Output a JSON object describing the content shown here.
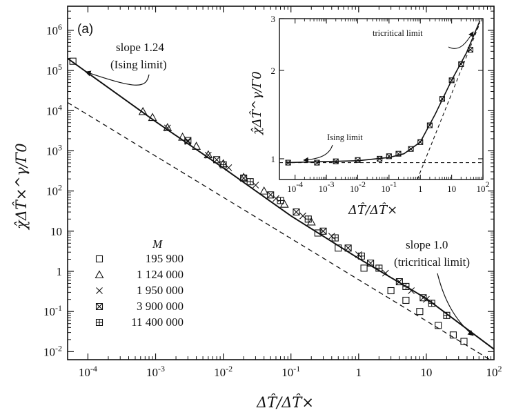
{
  "chart_data": [
    {
      "id": "main",
      "type": "scatter",
      "panel_label": "(a)",
      "xlabel": "ΔT̂/ΔT̂×",
      "ylabel": "χ̂ΔT̂×^γ/Γ0",
      "xscale": "log",
      "yscale": "log",
      "xlim_exp": [
        -4.3,
        2
      ],
      "ylim_exp": [
        -2.2,
        6.6
      ],
      "x_ticks": [
        "10-4",
        "10-3",
        "10-2",
        "10-1",
        "1",
        "10",
        "102"
      ],
      "y_ticks": [
        "10-2",
        "10-1",
        "1",
        "10",
        "102",
        "103",
        "104",
        "105",
        "106"
      ],
      "series": [
        {
          "name": "195 900",
          "marker": "square",
          "points": [
            [
              6e-05,
              170000
            ],
            [
              0.25,
              9.0
            ],
            [
              0.5,
              3.8
            ],
            [
              1.2,
              1.2
            ],
            [
              3.0,
              0.33
            ],
            [
              5.0,
              0.19
            ],
            [
              8.0,
              0.1
            ],
            [
              15.0,
              0.045
            ],
            [
              25.0,
              0.026
            ],
            [
              36.0,
              0.018
            ]
          ]
        },
        {
          "name": "1 124 000",
          "marker": "triangle",
          "points": [
            [
              0.00065,
              9500
            ],
            [
              0.0009,
              6800
            ],
            [
              0.0015,
              3800
            ],
            [
              0.0025,
              2200
            ],
            [
              0.004,
              1300
            ],
            [
              0.006,
              800
            ],
            [
              0.01,
              480
            ],
            [
              0.02,
              220
            ],
            [
              0.04,
              100
            ],
            [
              0.08,
              47
            ],
            [
              0.2,
              17
            ]
          ]
        },
        {
          "name": "1 950 000",
          "marker": "cross",
          "points": [
            [
              0.0015,
              3700
            ],
            [
              0.003,
              1700
            ],
            [
              0.006,
              780
            ],
            [
              0.012,
              380
            ],
            [
              0.03,
              140
            ],
            [
              0.06,
              65
            ],
            [
              0.15,
              24
            ],
            [
              0.4,
              7.5
            ],
            [
              1.0,
              2.6
            ],
            [
              2.5,
              0.9
            ],
            [
              6.0,
              0.33
            ],
            [
              10.0,
              0.2
            ]
          ]
        },
        {
          "name": "3 900 000",
          "marker": "square-x",
          "points": [
            [
              0.003,
              1800
            ],
            [
              0.008,
              600
            ],
            [
              0.02,
              210
            ],
            [
              0.05,
              80
            ],
            [
              0.12,
              30
            ],
            [
              0.3,
              10
            ],
            [
              0.7,
              3.8
            ],
            [
              1.5,
              1.6
            ],
            [
              4.0,
              0.55
            ],
            [
              9.0,
              0.22
            ]
          ]
        },
        {
          "name": "11 400 000",
          "marker": "square-plus",
          "points": [
            [
              0.01,
              450
            ],
            [
              0.025,
              170
            ],
            [
              0.07,
              58
            ],
            [
              0.18,
              20
            ],
            [
              0.45,
              6.8
            ],
            [
              1.1,
              2.4
            ],
            [
              2.0,
              1.2
            ],
            [
              5.0,
              0.42
            ],
            [
              12.0,
              0.16
            ],
            [
              20.0,
              0.08
            ]
          ]
        }
      ],
      "lines": [
        {
          "name": "solid-fit",
          "style": "solid",
          "points": [
            [
              5e-05,
              200000
            ],
            [
              0.001,
              5350
            ],
            [
              0.01,
              375
            ],
            [
              0.1,
              24
            ],
            [
              1.0,
              2.1
            ],
            [
              10.0,
              0.21
            ],
            [
              100.0,
              0.0115
            ]
          ]
        },
        {
          "name": "dashed-asymptote",
          "style": "dashed",
          "points": [
            [
              5e-05,
              16000
            ],
            [
              100.0,
              0.0055
            ]
          ]
        }
      ],
      "annotations": [
        {
          "text": "slope 1.24",
          "target": "Ising-limit end"
        },
        {
          "text": "(Ising limit)",
          "target": "Ising-limit end"
        },
        {
          "text": "slope 1.0",
          "target": "tricritical end"
        },
        {
          "text": "(tricritical limit)",
          "target": "tricritical end"
        }
      ],
      "legend_title": "M",
      "legend_position": "lower-left"
    },
    {
      "id": "inset",
      "type": "scatter",
      "xlabel": "ΔT̂/ΔT̂×",
      "ylabel": "χ̂ΔT̂^γ/Γ0",
      "xscale": "log",
      "yscale": "log",
      "xlim_exp": [
        -4.5,
        2
      ],
      "ylim": [
        0.85,
        3
      ],
      "x_ticks": [
        "10-4",
        "10-3",
        "10-2",
        "10-1",
        "1",
        "10",
        "102"
      ],
      "y_ticks": [
        "1",
        "2",
        "3"
      ],
      "series_points": [
        [
          6e-05,
          0.97
        ],
        [
          0.0005,
          0.97
        ],
        [
          0.002,
          0.98
        ],
        [
          0.01,
          0.99
        ],
        [
          0.05,
          1.0
        ],
        [
          0.1,
          1.02
        ],
        [
          0.2,
          1.04
        ],
        [
          0.5,
          1.08
        ],
        [
          1.0,
          1.14
        ],
        [
          2.0,
          1.3
        ],
        [
          5.0,
          1.6
        ],
        [
          10.0,
          1.85
        ],
        [
          20.0,
          2.1
        ],
        [
          40.0,
          2.35
        ]
      ],
      "curve_points": [
        [
          5e-05,
          0.97
        ],
        [
          0.01,
          0.985
        ],
        [
          0.1,
          1.01
        ],
        [
          0.3,
          1.04
        ],
        [
          1.0,
          1.14
        ],
        [
          3.0,
          1.42
        ],
        [
          10.0,
          1.85
        ],
        [
          30.0,
          2.3
        ],
        [
          80.0,
          2.95
        ]
      ],
      "dashed_lines": [
        {
          "name": "ising-level",
          "y": 0.97
        },
        {
          "name": "tricritical-asymptote",
          "from": [
            0.8,
            0.85
          ],
          "to": [
            80.0,
            2.9
          ]
        }
      ],
      "annotations": [
        {
          "text": "tricritical limit"
        },
        {
          "text": "Ising limit"
        }
      ]
    }
  ]
}
